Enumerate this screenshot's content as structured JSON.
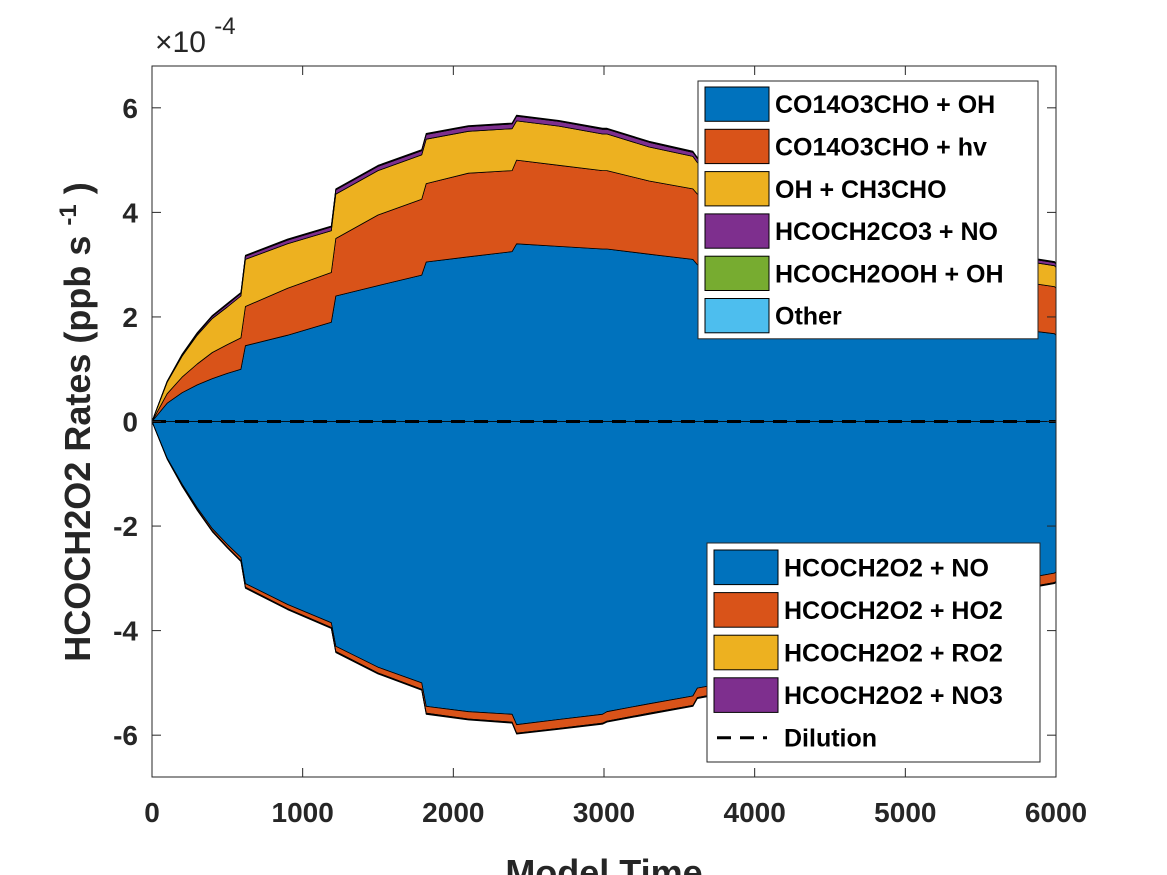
{
  "chart_data": {
    "type": "area",
    "title": "",
    "xlabel": "Model Time",
    "ylabel": "HCOCH2O2 Rates (ppb s",
    "ylabel_sup": "-1",
    "ylabel_close": ")",
    "y_multiplier": "×10",
    "y_multiplier_exp": "-4",
    "xlim": [
      0,
      6000
    ],
    "ylim": [
      -6.8,
      6.8
    ],
    "x_ticks": [
      0,
      1000,
      2000,
      3000,
      4000,
      5000,
      6000
    ],
    "y_ticks": [
      -6,
      -4,
      -2,
      0,
      2,
      4,
      6
    ],
    "grid": false,
    "legend_production_position": "top-right",
    "legend_loss_position": "bottom-right",
    "x": [
      0,
      100,
      200,
      300,
      400,
      500,
      590,
      620,
      900,
      1190,
      1220,
      1500,
      1790,
      1820,
      2100,
      2390,
      2420,
      2700,
      2990,
      3020,
      3300,
      3590,
      3620,
      3900,
      4190,
      4220,
      4500,
      4790,
      4820,
      5100,
      5390,
      5420,
      5700,
      5990,
      6000
    ],
    "production_series": [
      {
        "name": "CO14O3CHO + OH",
        "color": "#0072BD",
        "values": [
          0,
          0.35,
          0.55,
          0.7,
          0.82,
          0.92,
          1.0,
          1.45,
          1.65,
          1.9,
          2.4,
          2.6,
          2.8,
          3.05,
          3.15,
          3.25,
          3.4,
          3.35,
          3.3,
          3.3,
          3.2,
          3.1,
          3.0,
          2.9,
          2.8,
          2.7,
          2.55,
          2.4,
          2.3,
          2.15,
          2.0,
          1.9,
          1.78,
          1.68,
          1.65
        ]
      },
      {
        "name": "CO14O3CHO + hv",
        "color": "#D95319",
        "values": [
          0,
          0.18,
          0.3,
          0.4,
          0.5,
          0.55,
          0.6,
          0.75,
          0.9,
          0.95,
          1.1,
          1.35,
          1.45,
          1.5,
          1.6,
          1.55,
          1.6,
          1.55,
          1.5,
          1.5,
          1.4,
          1.35,
          1.35,
          1.3,
          1.25,
          1.2,
          1.15,
          1.1,
          1.1,
          1.05,
          1.0,
          0.95,
          0.92,
          0.9,
          0.9
        ]
      },
      {
        "name": "OH + CH3CHO",
        "color": "#EDB120",
        "values": [
          0,
          0.22,
          0.4,
          0.55,
          0.65,
          0.72,
          0.8,
          0.9,
          0.85,
          0.8,
          0.85,
          0.85,
          0.85,
          0.85,
          0.8,
          0.8,
          0.75,
          0.75,
          0.7,
          0.7,
          0.65,
          0.62,
          0.6,
          0.58,
          0.55,
          0.52,
          0.5,
          0.48,
          0.46,
          0.45,
          0.44,
          0.42,
          0.41,
          0.4,
          0.4
        ]
      },
      {
        "name": "HCOCH2CO3 + NO",
        "color": "#7E2F8E",
        "values": [
          0,
          0.01,
          0.02,
          0.03,
          0.04,
          0.05,
          0.05,
          0.06,
          0.07,
          0.07,
          0.08,
          0.08,
          0.08,
          0.09,
          0.09,
          0.09,
          0.09,
          0.09,
          0.09,
          0.09,
          0.09,
          0.08,
          0.08,
          0.08,
          0.08,
          0.08,
          0.07,
          0.07,
          0.07,
          0.07,
          0.06,
          0.06,
          0.06,
          0.06,
          0.06
        ]
      },
      {
        "name": "HCOCH2OOH + OH",
        "color": "#77AC30",
        "values": [
          0,
          0.005,
          0.01,
          0.01,
          0.01,
          0.01,
          0.01,
          0.01,
          0.01,
          0.01,
          0.01,
          0.01,
          0.01,
          0.01,
          0.01,
          0.01,
          0.01,
          0.01,
          0.01,
          0.01,
          0.01,
          0.01,
          0.01,
          0.01,
          0.01,
          0.01,
          0.01,
          0.01,
          0.01,
          0.01,
          0.01,
          0.01,
          0.01,
          0.01,
          0.01
        ]
      },
      {
        "name": "Other",
        "color": "#4DBEEE",
        "values": [
          0,
          0.005,
          0.01,
          0.01,
          0.01,
          0.01,
          0.01,
          0.01,
          0.01,
          0.01,
          0.01,
          0.01,
          0.01,
          0.01,
          0.01,
          0.01,
          0.01,
          0.01,
          0.01,
          0.01,
          0.01,
          0.01,
          0.01,
          0.01,
          0.01,
          0.01,
          0.01,
          0.01,
          0.01,
          0.01,
          0.01,
          0.01,
          0.01,
          0.01,
          0.01
        ]
      }
    ],
    "loss_series": [
      {
        "name": "HCOCH2O2 + NO",
        "color": "#0072BD",
        "values": [
          0,
          -0.7,
          -1.2,
          -1.65,
          -2.05,
          -2.35,
          -2.6,
          -3.1,
          -3.5,
          -3.85,
          -4.3,
          -4.7,
          -5.0,
          -5.45,
          -5.55,
          -5.6,
          -5.8,
          -5.7,
          -5.6,
          -5.55,
          -5.4,
          -5.25,
          -5.1,
          -4.95,
          -4.75,
          -4.55,
          -4.3,
          -4.05,
          -3.9,
          -3.65,
          -3.4,
          -3.25,
          -3.05,
          -2.9,
          -2.88
        ]
      },
      {
        "name": "HCOCH2O2 + HO2",
        "color": "#D95319",
        "values": [
          0,
          -0.01,
          -0.02,
          -0.03,
          -0.04,
          -0.05,
          -0.06,
          -0.07,
          -0.08,
          -0.09,
          -0.1,
          -0.11,
          -0.12,
          -0.13,
          -0.14,
          -0.15,
          -0.16,
          -0.17,
          -0.17,
          -0.18,
          -0.18,
          -0.18,
          -0.18,
          -0.18,
          -0.18,
          -0.18,
          -0.18,
          -0.18,
          -0.18,
          -0.18,
          -0.18,
          -0.18,
          -0.18,
          -0.18,
          -0.18
        ]
      },
      {
        "name": "HCOCH2O2 + RO2",
        "color": "#EDB120",
        "values": [
          0,
          -0.005,
          -0.01,
          -0.01,
          -0.01,
          -0.01,
          -0.01,
          -0.01,
          -0.01,
          -0.01,
          -0.01,
          -0.01,
          -0.01,
          -0.01,
          -0.01,
          -0.01,
          -0.01,
          -0.01,
          -0.01,
          -0.01,
          -0.01,
          -0.01,
          -0.01,
          -0.01,
          -0.01,
          -0.01,
          -0.01,
          -0.01,
          -0.01,
          -0.01,
          -0.01,
          -0.01,
          -0.01,
          -0.01,
          -0.01
        ]
      },
      {
        "name": "HCOCH2O2 + NO3",
        "color": "#7E2F8E",
        "values": [
          0,
          -0.005,
          -0.01,
          -0.01,
          -0.01,
          -0.01,
          -0.01,
          -0.01,
          -0.01,
          -0.01,
          -0.01,
          -0.01,
          -0.01,
          -0.01,
          -0.01,
          -0.01,
          -0.01,
          -0.01,
          -0.01,
          -0.01,
          -0.01,
          -0.01,
          -0.01,
          -0.01,
          -0.01,
          -0.01,
          -0.01,
          -0.01,
          -0.01,
          -0.01,
          -0.01,
          -0.01,
          -0.01,
          -0.01,
          -0.01
        ]
      }
    ],
    "dilution": {
      "name": "Dilution",
      "color": "#000000",
      "value": 0
    }
  }
}
